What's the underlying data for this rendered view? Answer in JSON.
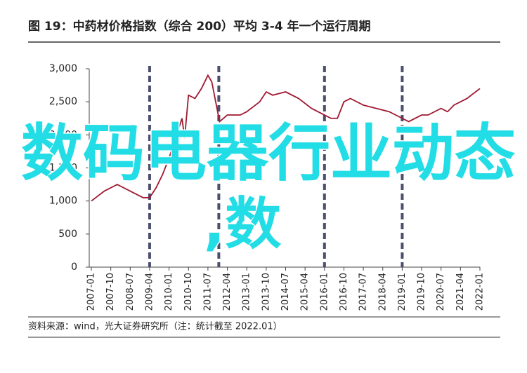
{
  "chart_data": {
    "type": "line",
    "title": "图 19：中药材价格指数（综合 200）平均 3-4 年一个运行周期",
    "source": "资料来源：wind，光大证券研究所（注：统计截至 2022.01）",
    "overlay": [
      "数码电器行业动态",
      ",数"
    ],
    "xlim": [
      2007,
      2022
    ],
    "xticks": [
      {
        "value": 2007,
        "label": "2007-01"
      },
      {
        "value": 2007.75,
        "label": "2007-10"
      },
      {
        "value": 2008.5,
        "label": "2008-07"
      },
      {
        "value": 2009.25,
        "label": "2009-04"
      },
      {
        "value": 2010,
        "label": "2010-01"
      },
      {
        "value": 2010.75,
        "label": "2010-10"
      },
      {
        "value": 2011.5,
        "label": "2011-07"
      },
      {
        "value": 2012.25,
        "label": "2012-04"
      },
      {
        "value": 2013,
        "label": "2013-01"
      },
      {
        "value": 2013.75,
        "label": "2013-10"
      },
      {
        "value": 2014.5,
        "label": "2014-07"
      },
      {
        "value": 2015.25,
        "label": "2015-04"
      },
      {
        "value": 2016,
        "label": "2016-01"
      },
      {
        "value": 2016.75,
        "label": "2016-10"
      },
      {
        "value": 2017.5,
        "label": "2017-07"
      },
      {
        "value": 2018.25,
        "label": "2018-04"
      },
      {
        "value": 2019,
        "label": "2019-01"
      },
      {
        "value": 2019.75,
        "label": "2019-10"
      },
      {
        "value": 2020.5,
        "label": "2020-07"
      },
      {
        "value": 2021.25,
        "label": "2021-04"
      },
      {
        "value": 2022,
        "label": "2022-01"
      }
    ],
    "ylim": [
      0,
      3000
    ],
    "yticks": [
      0,
      500,
      {
        "value": 1000,
        "label": "1,000"
      },
      {
        "value": 1500,
        "label": "1,500"
      },
      {
        "value": 2000,
        "label": "2,000"
      },
      {
        "value": 2500,
        "label": "2,500"
      },
      {
        "value": 3000,
        "label": "3,000"
      }
    ],
    "vlines": [
      2009.25,
      2011.92,
      2016.0,
      2019.0
    ],
    "vline_color": "#4a4f6e",
    "series": [
      {
        "color": "#a01830",
        "x": [
          2007.0,
          2007.5,
          2008.0,
          2008.5,
          2009.0,
          2009.25,
          2009.5,
          2009.75,
          2010.0,
          2010.25,
          2010.5,
          2010.6,
          2010.75,
          2011.0,
          2011.25,
          2011.5,
          2011.65,
          2011.8,
          2011.95,
          2012.25,
          2012.75,
          2013.0,
          2013.5,
          2013.75,
          2014.0,
          2014.5,
          2015.0,
          2015.5,
          2016.0,
          2016.25,
          2016.5,
          2016.75,
          2017.0,
          2017.5,
          2018.0,
          2018.5,
          2019.0,
          2019.25,
          2019.75,
          2020.0,
          2020.5,
          2020.75,
          2021.0,
          2021.5,
          2022.0
        ],
        "values": [
          1000,
          1150,
          1250,
          1150,
          1050,
          1050,
          1200,
          1400,
          1650,
          1950,
          2250,
          1950,
          2600,
          2550,
          2700,
          2900,
          2800,
          2500,
          2200,
          2300,
          2300,
          2350,
          2500,
          2650,
          2600,
          2650,
          2550,
          2400,
          2300,
          2250,
          2250,
          2500,
          2550,
          2450,
          2400,
          2350,
          2250,
          2200,
          2300,
          2300,
          2400,
          2350,
          2450,
          2550,
          2700
        ]
      }
    ]
  }
}
